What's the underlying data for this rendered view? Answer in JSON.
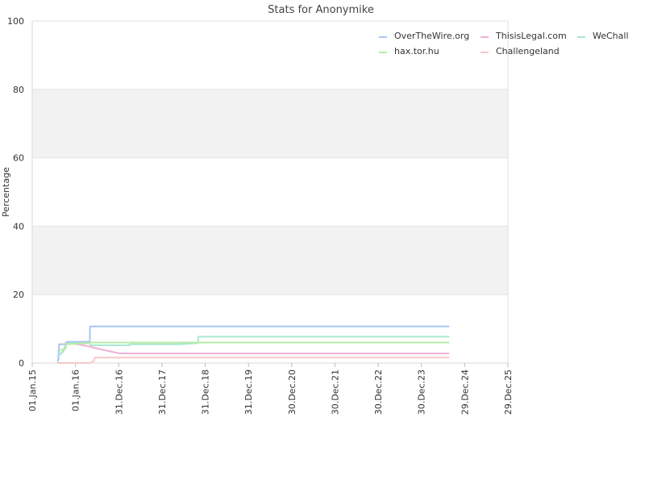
{
  "chart_data": {
    "type": "line",
    "title": "Stats for Anonymike",
    "ylabel": "Percentage",
    "xlabel": "",
    "ylim": [
      0,
      100
    ],
    "y_ticks": [
      0,
      20,
      40,
      60,
      80,
      100
    ],
    "x_ticks": [
      "01.Jan.15",
      "01.Jan.16",
      "31.Dec.16",
      "31.Dec.17",
      "31.Dec.18",
      "31.Dec.19",
      "30.Dec.20",
      "30.Dec.21",
      "30.Dec.22",
      "30.Dec.23",
      "29.Dec.24",
      "29.Dec.25"
    ],
    "xlim": [
      "2015-01-01",
      "2025-12-29"
    ],
    "grid": "horizontal bands",
    "legend": "top-right",
    "series": [
      {
        "name": "OverTheWire.org",
        "color": "#a4c8f0",
        "points": [
          [
            "2015-08-05",
            0.5
          ],
          [
            "2015-08-06",
            1.0
          ],
          [
            "2015-08-10",
            1.0
          ],
          [
            "2015-08-12",
            2.5
          ],
          [
            "2015-08-14",
            4.5
          ],
          [
            "2015-08-16",
            5.5
          ],
          [
            "2015-10-15",
            5.5
          ],
          [
            "2015-10-16",
            6.2
          ],
          [
            "2016-05-01",
            6.2
          ],
          [
            "2016-05-03",
            10.7
          ],
          [
            "2024-08-15",
            10.7
          ]
        ]
      },
      {
        "name": "ThisisLegal.com",
        "color": "#f0b0d8",
        "points": [
          [
            "2015-08-05",
            2.0
          ],
          [
            "2015-09-10",
            3.0
          ],
          [
            "2015-10-01",
            4.0
          ],
          [
            "2015-10-10",
            6.0
          ],
          [
            "2016-01-15",
            5.5
          ],
          [
            "2016-05-01",
            4.8
          ],
          [
            "2016-08-01",
            4.0
          ],
          [
            "2016-11-01",
            3.3
          ],
          [
            "2017-01-10",
            2.8
          ],
          [
            "2024-08-15",
            2.8
          ]
        ]
      },
      {
        "name": "WeChall",
        "color": "#a8e8d0",
        "points": [
          [
            "2015-08-05",
            2.0
          ],
          [
            "2015-09-20",
            3.5
          ],
          [
            "2015-10-10",
            5.2
          ],
          [
            "2015-10-15",
            5.8
          ],
          [
            "2016-05-03",
            5.8
          ],
          [
            "2016-05-04",
            5.2
          ],
          [
            "2017-04-01",
            5.2
          ],
          [
            "2017-04-02",
            5.5
          ],
          [
            "2018-06-01",
            5.5
          ],
          [
            "2018-11-01",
            5.8
          ],
          [
            "2018-11-02",
            7.7
          ],
          [
            "2024-08-15",
            7.7
          ]
        ]
      },
      {
        "name": "hax.tor.hu",
        "color": "#b8eaa8",
        "points": [
          [
            "2015-08-05",
            3.5
          ],
          [
            "2015-09-15",
            4.0
          ],
          [
            "2015-10-10",
            4.2
          ],
          [
            "2015-10-15",
            5.5
          ],
          [
            "2016-05-03",
            5.8
          ],
          [
            "2016-05-04",
            6.0
          ],
          [
            "2024-08-15",
            6.0
          ]
        ]
      },
      {
        "name": "Challengeland",
        "color": "#f8c8c8",
        "points": [
          [
            "2015-08-05",
            0.0
          ],
          [
            "2016-05-01",
            0.0
          ],
          [
            "2016-06-01",
            0.5
          ],
          [
            "2016-06-15",
            1.6
          ],
          [
            "2024-08-15",
            1.6
          ]
        ]
      }
    ]
  }
}
